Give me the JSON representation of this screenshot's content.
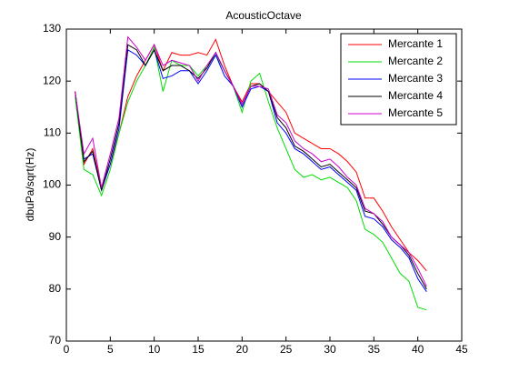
{
  "chart_data": {
    "type": "line",
    "title": "AcousticOctave",
    "y_label": "dbuPa/sqrt(Hz)",
    "x": [
      1,
      2,
      3,
      4,
      5,
      6,
      7,
      8,
      9,
      10,
      11,
      12,
      13,
      14,
      15,
      16,
      17,
      18,
      19,
      20,
      21,
      22,
      23,
      24,
      25,
      26,
      27,
      28,
      29,
      30,
      31,
      32,
      33,
      34,
      35,
      36,
      37,
      38,
      39,
      40,
      41
    ],
    "series": [
      {
        "name": "Mercante 1",
        "color": "#ff0000",
        "values": [
          118,
          104,
          107,
          99.5,
          104,
          110,
          117,
          121,
          124,
          127,
          122,
          125.5,
          125,
          125,
          125.5,
          125,
          128,
          123,
          119,
          116,
          119.5,
          119.5,
          118,
          116,
          114,
          110,
          109,
          108,
          107,
          107,
          106,
          104.5,
          102.5,
          97.5,
          97.5,
          95,
          92,
          89.5,
          87,
          85.5,
          83.5
        ]
      },
      {
        "name": "Mercante 2",
        "color": "#00dd00",
        "values": [
          117,
          103,
          102,
          98,
          103,
          110,
          116,
          120,
          123,
          126.5,
          118,
          124,
          123,
          123,
          121,
          123,
          125,
          122,
          119,
          114,
          120,
          121.5,
          116,
          111,
          107,
          103,
          101.5,
          102,
          101,
          101.5,
          100.5,
          99.5,
          97,
          91.5,
          90.5,
          89,
          86,
          83,
          81.5,
          76.5,
          76
        ]
      },
      {
        "name": "Mercante 3",
        "color": "#0000ff",
        "values": [
          118,
          105,
          106,
          99,
          104,
          111,
          126,
          125,
          123,
          126,
          120.5,
          121,
          122,
          122,
          119.5,
          122,
          125,
          121,
          119,
          115,
          118.5,
          119,
          118,
          112,
          110,
          107,
          106,
          104.5,
          103,
          103.5,
          102,
          100.5,
          99,
          94,
          93.5,
          92,
          89.5,
          88,
          86,
          82,
          79.5
        ]
      },
      {
        "name": "Mercante 4",
        "color": "#000000",
        "values": [
          118,
          104.5,
          106.5,
          99,
          105,
          112,
          127,
          126,
          123,
          126,
          122,
          123,
          123,
          122,
          120.5,
          122.5,
          125.5,
          122,
          119,
          115.5,
          119,
          119.5,
          118,
          113,
          111,
          107.5,
          106.5,
          105,
          103.5,
          104,
          102.5,
          101,
          99.5,
          95,
          94.5,
          92.5,
          90,
          88.5,
          86.5,
          83,
          80
        ]
      },
      {
        "name": "Mercante 5",
        "color": "#cc00cc",
        "values": [
          118,
          106,
          109,
          99.5,
          106,
          113,
          128.5,
          126.5,
          124,
          127,
          123,
          124,
          123.5,
          123,
          120,
          123,
          125.5,
          122,
          119,
          115.5,
          119,
          119,
          118.5,
          113.5,
          112,
          108.5,
          107,
          106,
          104.5,
          105,
          103.5,
          101.5,
          100,
          95.5,
          94.5,
          93,
          90,
          88.5,
          87,
          84,
          80.5
        ]
      }
    ],
    "xlim": [
      0,
      45
    ],
    "xticks": [
      0,
      5,
      10,
      15,
      20,
      25,
      30,
      35,
      40,
      45
    ],
    "ylim": [
      70,
      130
    ],
    "yticks": [
      70,
      80,
      90,
      100,
      110,
      120,
      130
    ],
    "legend": "top-right"
  }
}
